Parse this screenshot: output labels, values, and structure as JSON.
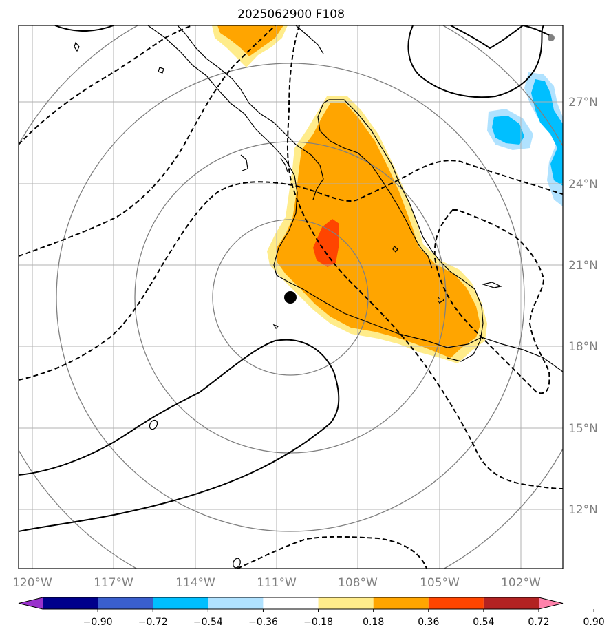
{
  "title": "2025062900 F108",
  "lon_ticks": [
    "120°W",
    "117°W",
    "114°W",
    "111°W",
    "108°W",
    "105°W",
    "102°W"
  ],
  "lat_ticks": [
    "27°N",
    "24°N",
    "21°N",
    "18°N",
    "15°N",
    "12°N"
  ],
  "colorbar": {
    "labels": [
      "−0.90",
      "−0.72",
      "−0.54",
      "−0.36",
      "−0.18",
      "0.18",
      "0.36",
      "0.54",
      "0.72",
      "0.90"
    ],
    "colors": [
      "#9932cc",
      "#00008b",
      "#3a5fcd",
      "#00bfff",
      "#b0e2ff",
      "#ffffff",
      "#ffec8b",
      "#ffa500",
      "#ff4500",
      "#b22222",
      "#ff82ab"
    ]
  },
  "contour_labels": {
    "zero_west": "0",
    "zero_south": "0",
    "minus_one": "-1"
  },
  "colors": {
    "shade_light": "#ffec8b",
    "shade_mid": "#ffa500",
    "shade_high": "#ff4500",
    "shade_neg_light": "#b0e2ff",
    "shade_neg": "#00bfff",
    "grid": "#b0b0b0",
    "range_ring": "#808080"
  }
}
